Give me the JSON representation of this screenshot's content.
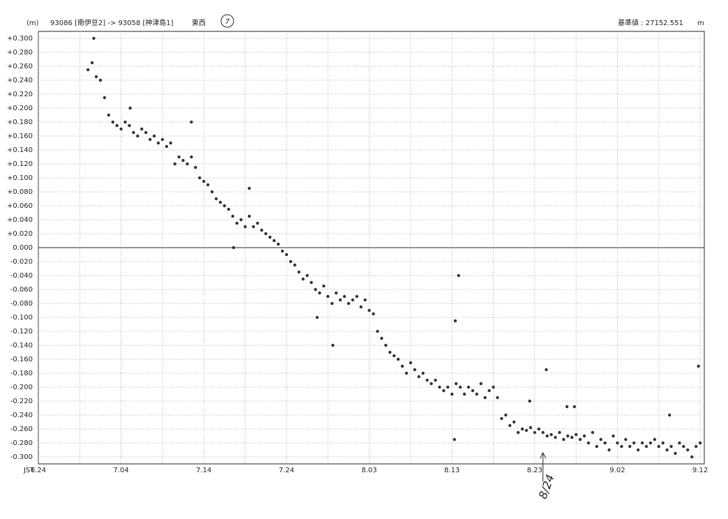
{
  "chart_data": {
    "type": "scatter",
    "header": {
      "unit": "(m)",
      "baseline": "93086 [南伊豆2] -> 93058 [神津島1]",
      "component": "東西",
      "number": "7",
      "reference": "基準値 : 27152.551",
      "reference_unit": "m"
    },
    "x_prefix": "JST",
    "x": [
      6,
      6.5,
      7,
      7.5,
      8,
      8.5,
      9,
      9.5,
      10,
      10.5,
      11,
      11.5,
      12,
      12.5,
      13,
      13.5,
      14,
      14.5,
      15,
      15.5,
      16,
      16.5,
      17,
      17.5,
      18,
      18.5,
      19,
      19.5,
      20,
      20.5,
      21,
      21.5,
      22,
      22.5,
      23,
      23.5,
      24,
      24.5,
      25,
      25.5,
      26,
      26.5,
      27,
      27.5,
      28,
      28.5,
      29,
      29.5,
      30,
      30.5,
      31,
      31.5,
      32,
      32.5,
      33,
      33.5,
      34,
      34.5,
      35,
      35.5,
      36,
      36.5,
      37,
      37.5,
      38,
      38.5,
      39,
      39.5,
      40,
      40.5,
      41,
      41.5,
      42,
      42.5,
      43,
      43.5,
      44,
      44.5,
      45,
      45.5,
      46,
      46.5,
      47,
      47.5,
      48,
      48.5,
      49,
      49.5,
      50,
      50.5,
      51,
      51.5,
      52,
      52.5,
      53,
      53.5,
      54,
      54.5,
      55,
      55.5,
      56,
      56.5,
      57,
      57.5,
      58,
      58.5,
      59,
      59.5,
      60,
      60.5,
      61,
      61.5,
      62,
      62.5,
      63,
      63.5,
      64,
      64.5,
      65,
      65.5,
      66,
      66.5,
      67,
      67.5,
      68,
      68.5,
      69,
      69.5,
      70,
      70.5,
      71,
      71.5,
      72,
      72.5,
      73,
      73.5,
      74,
      74.5,
      75,
      75.5,
      76,
      76.5,
      77,
      77.5,
      78,
      78.5,
      79,
      79.5,
      80,
      6.7,
      11.1,
      18.5,
      25.5,
      23.6,
      35.6,
      50.8,
      50.4,
      50.3,
      61.4,
      59.4,
      63.9,
      64.8,
      76.3,
      79.8,
      33.7
    ],
    "values": [
      0.255,
      0.265,
      0.245,
      0.24,
      0.215,
      0.19,
      0.18,
      0.175,
      0.17,
      0.18,
      0.175,
      0.165,
      0.16,
      0.17,
      0.165,
      0.155,
      0.16,
      0.15,
      0.155,
      0.145,
      0.15,
      0.12,
      0.13,
      0.125,
      0.12,
      0.13,
      0.115,
      0.1,
      0.095,
      0.09,
      0.08,
      0.07,
      0.065,
      0.06,
      0.055,
      0.045,
      0.035,
      0.04,
      0.03,
      0.045,
      0.03,
      0.035,
      0.025,
      0.02,
      0.015,
      0.01,
      0.005,
      -0.005,
      -0.01,
      -0.02,
      -0.025,
      -0.035,
      -0.045,
      -0.04,
      -0.05,
      -0.06,
      -0.065,
      -0.055,
      -0.07,
      -0.08,
      -0.065,
      -0.075,
      -0.07,
      -0.08,
      -0.075,
      -0.07,
      -0.085,
      -0.075,
      -0.09,
      -0.095,
      -0.12,
      -0.13,
      -0.14,
      -0.15,
      -0.155,
      -0.16,
      -0.17,
      -0.18,
      -0.165,
      -0.175,
      -0.185,
      -0.18,
      -0.19,
      -0.195,
      -0.19,
      -0.2,
      -0.205,
      -0.2,
      -0.21,
      -0.195,
      -0.2,
      -0.21,
      -0.2,
      -0.205,
      -0.21,
      -0.195,
      -0.215,
      -0.205,
      -0.2,
      -0.215,
      -0.245,
      -0.24,
      -0.255,
      -0.25,
      -0.265,
      -0.26,
      -0.262,
      -0.258,
      -0.265,
      -0.26,
      -0.265,
      -0.27,
      -0.268,
      -0.272,
      -0.265,
      -0.275,
      -0.27,
      -0.272,
      -0.268,
      -0.275,
      -0.27,
      -0.28,
      -0.265,
      -0.285,
      -0.275,
      -0.28,
      -0.29,
      -0.27,
      -0.28,
      -0.285,
      -0.275,
      -0.285,
      -0.28,
      -0.29,
      -0.28,
      -0.285,
      -0.28,
      -0.275,
      -0.285,
      -0.28,
      -0.29,
      -0.285,
      -0.295,
      -0.28,
      -0.285,
      -0.29,
      -0.3,
      -0.285,
      -0.28,
      0.3,
      0.2,
      0.18,
      0.085,
      0,
      -0.14,
      -0.04,
      -0.105,
      -0.275,
      -0.175,
      -0.22,
      -0.228,
      -0.228,
      -0.24,
      -0.17,
      -0.1
    ],
    "color": "#333333",
    "xlim": [
      0,
      80.5
    ],
    "xticks": [
      {
        "value": 0,
        "label": "6.24"
      },
      {
        "value": 10,
        "label": "7.04"
      },
      {
        "value": 20,
        "label": "7.14"
      },
      {
        "value": 30,
        "label": "7.24"
      },
      {
        "value": 40,
        "label": "8.03"
      },
      {
        "value": 50,
        "label": "8.13"
      },
      {
        "value": 60,
        "label": "8.23"
      },
      {
        "value": 70,
        "label": "9.02"
      },
      {
        "value": 80,
        "label": "9.12"
      }
    ],
    "ylim": [
      -0.31,
      0.31
    ],
    "yticks": [
      {
        "value": 0.3,
        "label": "+0.300"
      },
      {
        "value": 0.28,
        "label": "+0.280"
      },
      {
        "value": 0.26,
        "label": "+0.260"
      },
      {
        "value": 0.24,
        "label": "+0.240"
      },
      {
        "value": 0.22,
        "label": "+0.220"
      },
      {
        "value": 0.2,
        "label": "+0.200"
      },
      {
        "value": 0.18,
        "label": "+0.180"
      },
      {
        "value": 0.16,
        "label": "+0.160"
      },
      {
        "value": 0.14,
        "label": "+0.140"
      },
      {
        "value": 0.12,
        "label": "+0.120"
      },
      {
        "value": 0.1,
        "label": "+0.100"
      },
      {
        "value": 0.08,
        "label": "+0.080"
      },
      {
        "value": 0.06,
        "label": "+0.060"
      },
      {
        "value": 0.04,
        "label": "+0.040"
      },
      {
        "value": 0.02,
        "label": "+0.020"
      },
      {
        "value": 0,
        "label": "0.000"
      },
      {
        "value": -0.02,
        "label": "-0.020"
      },
      {
        "value": -0.04,
        "label": "-0.040"
      },
      {
        "value": -0.06,
        "label": "-0.060"
      },
      {
        "value": -0.08,
        "label": "-0.080"
      },
      {
        "value": -0.1,
        "label": "-0.100"
      },
      {
        "value": -0.12,
        "label": "-0.120"
      },
      {
        "value": -0.14,
        "label": "-0.140"
      },
      {
        "value": -0.16,
        "label": "-0.160"
      },
      {
        "value": -0.18,
        "label": "-0.180"
      },
      {
        "value": -0.2,
        "label": "-0.200"
      },
      {
        "value": -0.22,
        "label": "-0.220"
      },
      {
        "value": -0.24,
        "label": "-0.240"
      },
      {
        "value": -0.26,
        "label": "-0.260"
      },
      {
        "value": -0.28,
        "label": "-0.280"
      },
      {
        "value": -0.3,
        "label": "-0.300"
      }
    ],
    "grid": true,
    "annotation": {
      "text": "8/24",
      "x": 61
    }
  }
}
